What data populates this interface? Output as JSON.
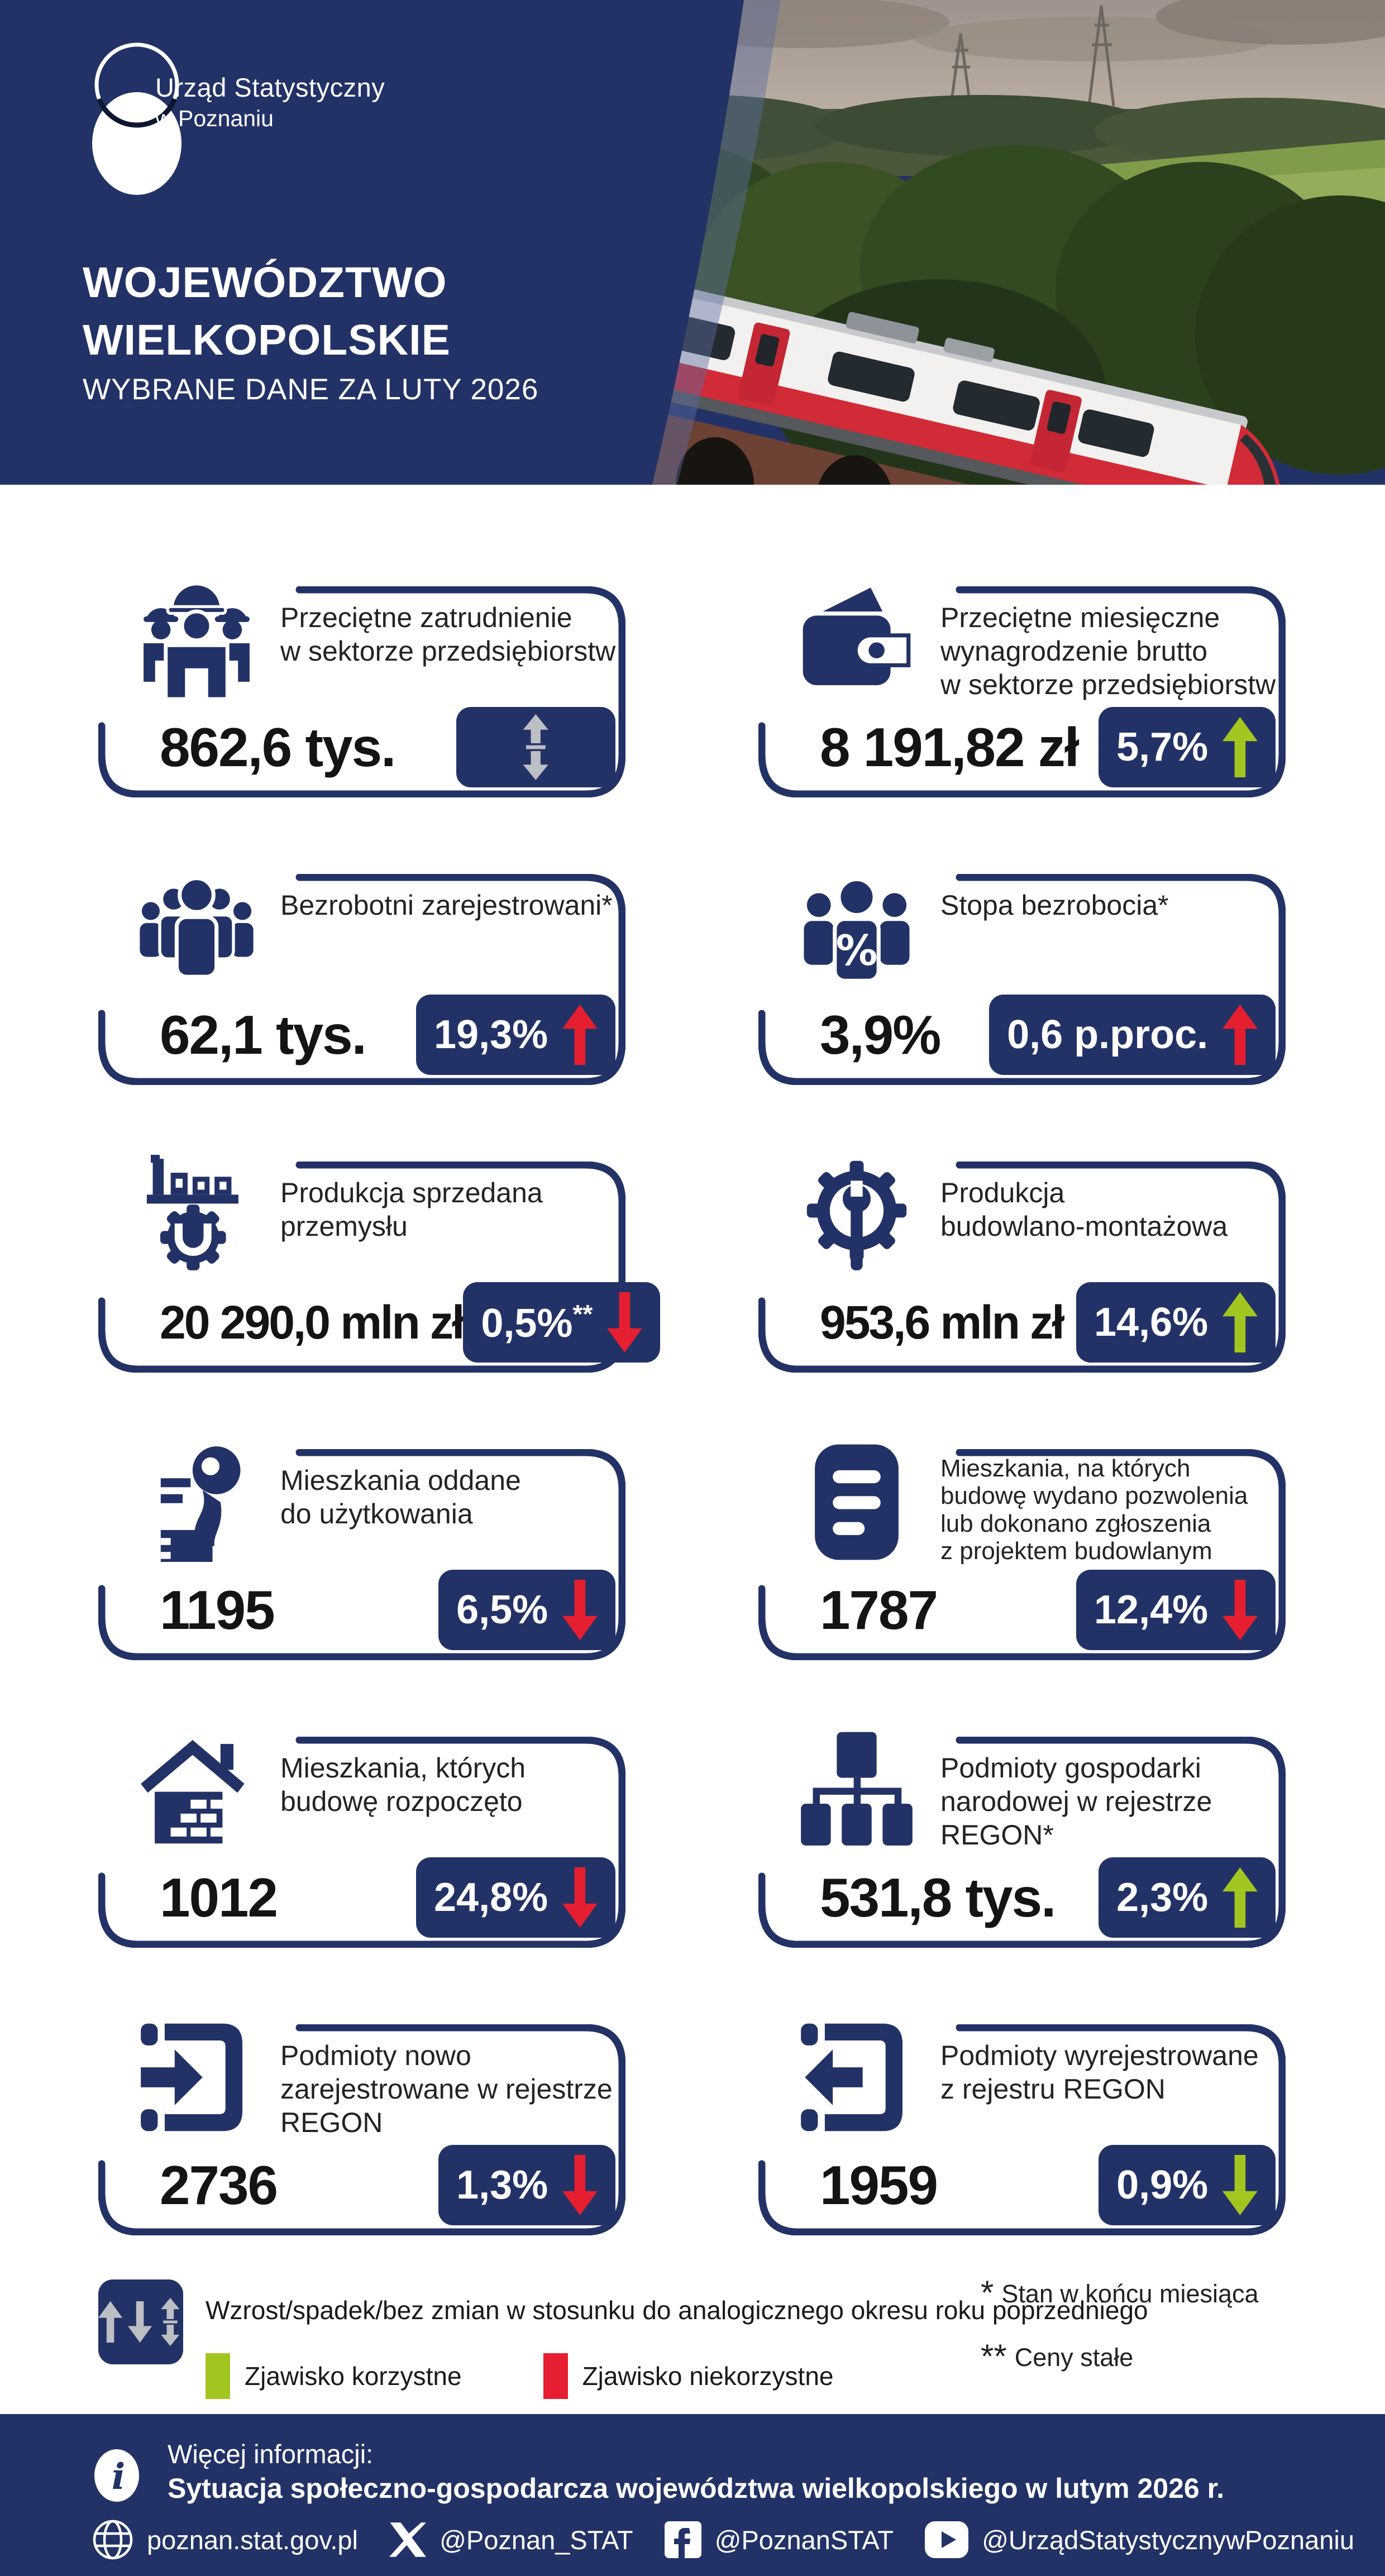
{
  "header": {
    "org_name": "Urząd Statystyczny",
    "org_sub": "w Poznaniu",
    "title_line1": "WOJEWÓDZTWO",
    "title_line2": "WIELKOPOLSKIE",
    "subtitle": "WYBRANE DANE ZA LUTY 2026"
  },
  "cards": [
    {
      "icon": "workers",
      "title": "Przeciętne zatrudnienie\nw sektorze przedsiębiorstw",
      "value": "862,6 tys.",
      "badge": {
        "text": "",
        "note": "",
        "direction": "none",
        "color": "silver"
      }
    },
    {
      "icon": "wallet",
      "title": "Przeciętne miesięczne\nwynagrodzenie brutto\nw sektorze przedsiębiorstw",
      "value": "8 191,82 zł",
      "badge": {
        "text": "5,7%",
        "note": "",
        "direction": "up",
        "color": "green"
      }
    },
    {
      "icon": "people",
      "title": "Bezrobotni zarejestrowani*",
      "value": "62,1 tys.",
      "badge": {
        "text": "19,3%",
        "note": "",
        "direction": "up",
        "color": "red"
      }
    },
    {
      "icon": "unemployment-rate",
      "title": "Stopa bezrobocia*",
      "value": "3,9%",
      "badge": {
        "text": "0,6 p.proc.",
        "note": "",
        "direction": "up",
        "color": "red"
      }
    },
    {
      "icon": "industry",
      "title": "Produkcja sprzedana\nprzemysłu",
      "value": "20 290,0 mln zł",
      "badge": {
        "text": "0,5%",
        "note": "**",
        "direction": "down",
        "color": "red"
      }
    },
    {
      "icon": "construction",
      "title": "Produkcja\nbudowlano-montażowa",
      "value": "953,6 mln zł",
      "badge": {
        "text": "14,6%",
        "note": "",
        "direction": "up",
        "color": "green"
      }
    },
    {
      "icon": "key",
      "title": "Mieszkania oddane\ndo użytkowania",
      "value": "1195",
      "badge": {
        "text": "6,5%",
        "note": "",
        "direction": "down",
        "color": "red"
      }
    },
    {
      "icon": "permit-document",
      "title": "Mieszkania, na których\nbudowę wydano pozwolenia\nlub dokonano zgłoszenia\nz projektem budowlanym",
      "value": "1787",
      "badge": {
        "text": "12,4%",
        "note": "",
        "direction": "down",
        "color": "red"
      },
      "dense": true
    },
    {
      "icon": "house-construction",
      "title": "Mieszkania, których\nbudowę rozpoczęto",
      "value": "1012",
      "badge": {
        "text": "24,8%",
        "note": "",
        "direction": "down",
        "color": "red"
      }
    },
    {
      "icon": "org-chart",
      "title": "Podmioty gospodarki\nnarodowej w rejestrze\nREGON*",
      "value": "531,8 tys.",
      "badge": {
        "text": "2,3%",
        "note": "",
        "direction": "up",
        "color": "green"
      }
    },
    {
      "icon": "register-in",
      "title": "Podmioty nowo\nzarejestrowane w rejestrze\nREGON",
      "value": "2736",
      "badge": {
        "text": "1,3%",
        "note": "",
        "direction": "down",
        "color": "red"
      }
    },
    {
      "icon": "register-out",
      "title": "Podmioty wyrejestrowane\nz rejestru REGON",
      "value": "1959",
      "badge": {
        "text": "0,9%",
        "note": "",
        "direction": "down",
        "color": "green"
      }
    }
  ],
  "legend": {
    "arrows_label": "Wzrost/spadek/bez zmian w stosunku do analogicznego okresu roku poprzedniego",
    "favorable": "Zjawisko korzystne",
    "unfavorable": "Zjawisko niekorzystne",
    "note1_star": "*",
    "note1": "Stan w końcu miesiąca",
    "note2_star": "**",
    "note2": "Ceny stałe"
  },
  "footer": {
    "more_info_label": "Więcej informacji:",
    "more_info_title": "Sytuacja społeczno-gospodarcza województwa wielkopolskiego w lutym 2026 r.",
    "website": "poznan.stat.gov.pl",
    "x_handle": "@Poznan_STAT",
    "facebook_handle": "@PoznanSTAT",
    "youtube_handle": "@UrządStatystycznywPoznaniu"
  },
  "colors": {
    "navy": "#233266",
    "green": "#a2c620",
    "red": "#e51f2f",
    "silver": "#bcbfc3"
  }
}
